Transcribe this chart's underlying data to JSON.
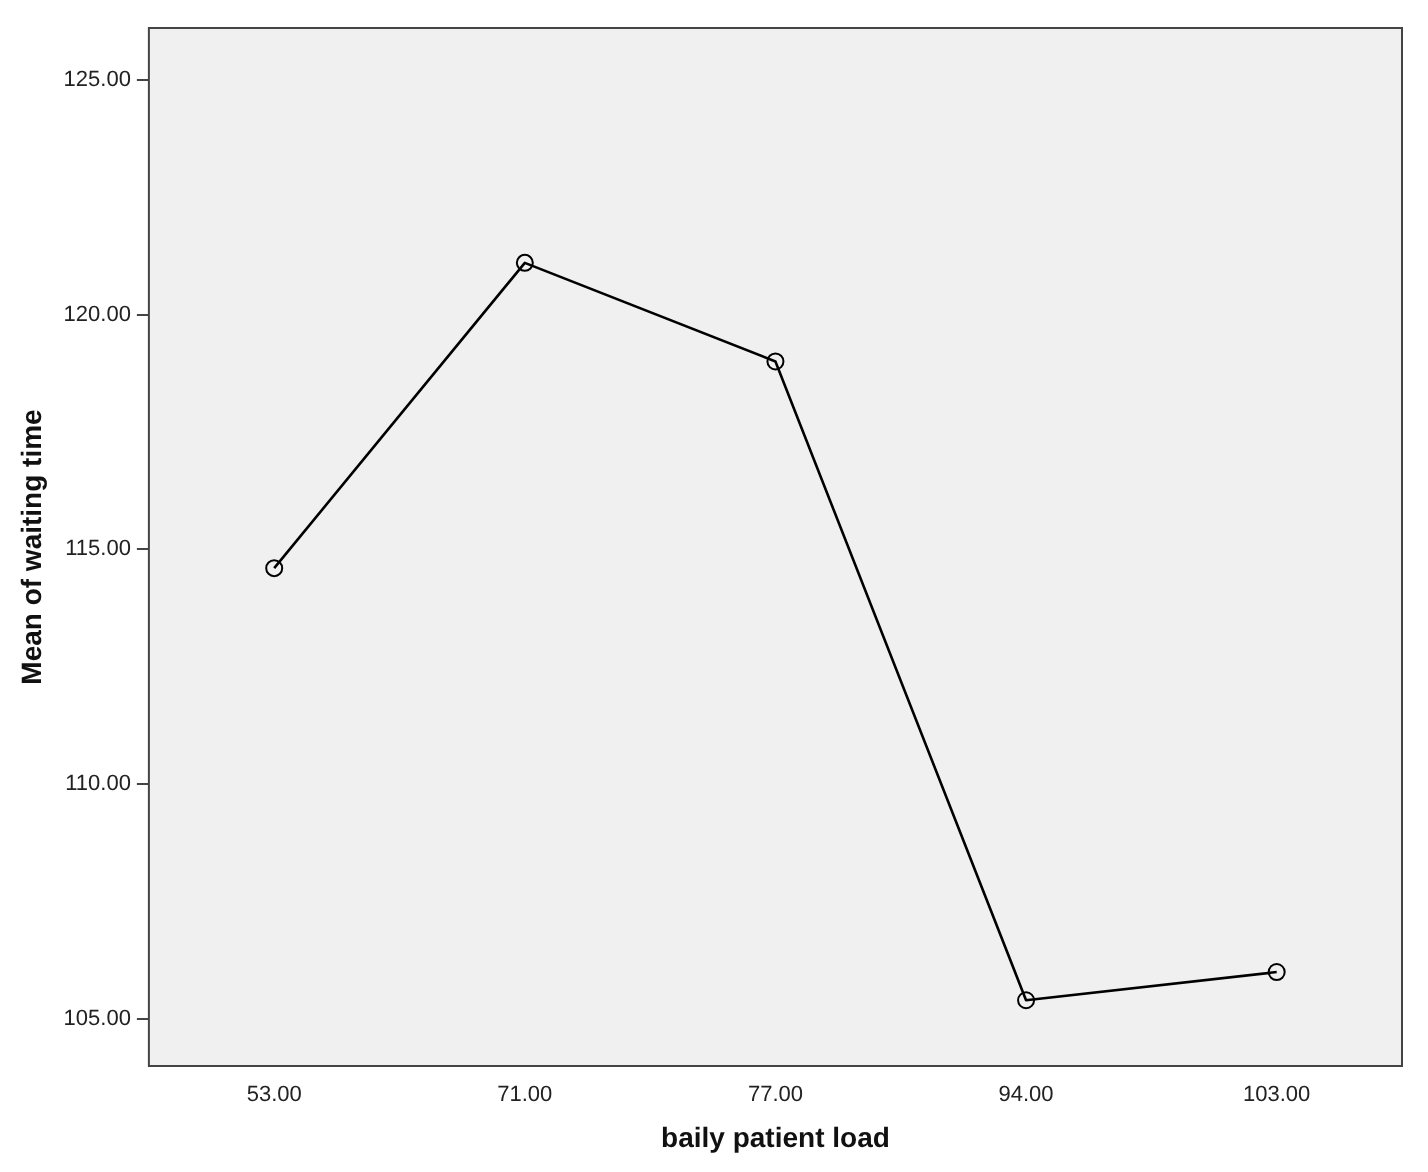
{
  "chart_data": {
    "type": "line",
    "xlabel": "baily patient load",
    "ylabel": "Mean of waiting time",
    "categories": [
      "53.00",
      "71.00",
      "77.00",
      "94.00",
      "103.00"
    ],
    "series": [
      {
        "color": "#000000",
        "values": [
          114.6,
          121.1,
          119.0,
          105.4,
          106.0
        ]
      }
    ],
    "ylim": [
      104.0,
      126.1
    ],
    "yticks": [
      {
        "value": 105,
        "label": "105.00"
      },
      {
        "value": 110,
        "label": "110.00"
      },
      {
        "value": 115,
        "label": "115.00"
      },
      {
        "value": 120,
        "label": "120.00"
      },
      {
        "value": 125,
        "label": "125.00"
      }
    ],
    "grid": false,
    "legend": false,
    "marker": "circle",
    "line_style": "solid"
  }
}
